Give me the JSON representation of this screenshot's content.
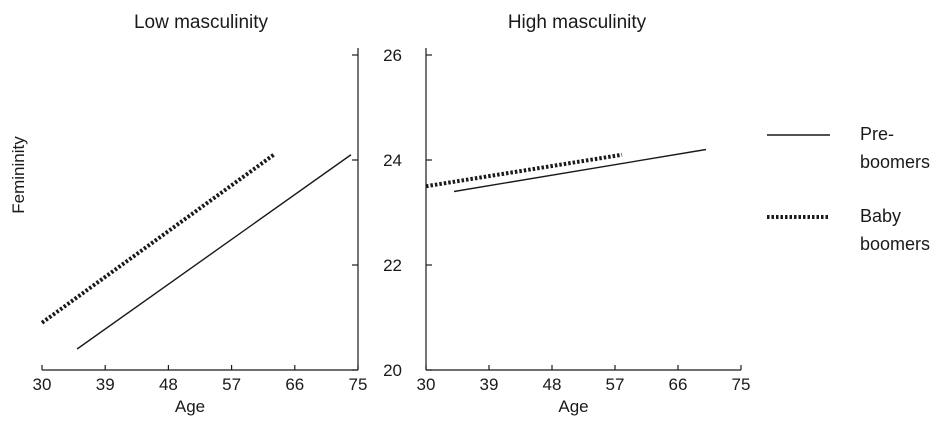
{
  "chart_data": [
    {
      "type": "line",
      "title": "Low masculinity",
      "xlabel": "Age",
      "ylabel": "Femininity",
      "xlim": [
        30,
        75
      ],
      "ylim": [
        20,
        26
      ],
      "xticks": [
        "30",
        "39",
        "48",
        "57",
        "66",
        "75"
      ],
      "series": [
        {
          "name": "Pre-boomers",
          "style": "solid",
          "x": [
            35,
            74
          ],
          "y": [
            20.4,
            24.1
          ]
        },
        {
          "name": "Baby boomers",
          "style": "dotted",
          "x": [
            30,
            63
          ],
          "y": [
            20.9,
            24.1
          ]
        }
      ]
    },
    {
      "type": "line",
      "title": "High masculinity",
      "xlabel": "Age",
      "xlim": [
        30,
        75
      ],
      "ylim": [
        20,
        26
      ],
      "xticks": [
        "30",
        "39",
        "48",
        "57",
        "66",
        "75"
      ],
      "yticks": [
        "20",
        "22",
        "24",
        "26"
      ],
      "series": [
        {
          "name": "Pre-boomers",
          "style": "solid",
          "x": [
            34,
            70
          ],
          "y": [
            23.4,
            24.2
          ]
        },
        {
          "name": "Baby boomers",
          "style": "dotted",
          "x": [
            30,
            58
          ],
          "y": [
            23.5,
            24.1
          ]
        }
      ]
    }
  ],
  "legend": {
    "placement": "right",
    "items": [
      {
        "line1": "Pre-",
        "line2": "boomers",
        "style": "solid"
      },
      {
        "line1": "Baby",
        "line2": "boomers",
        "style": "dotted"
      }
    ]
  },
  "colors": {
    "ink": "#1a1a1a"
  }
}
